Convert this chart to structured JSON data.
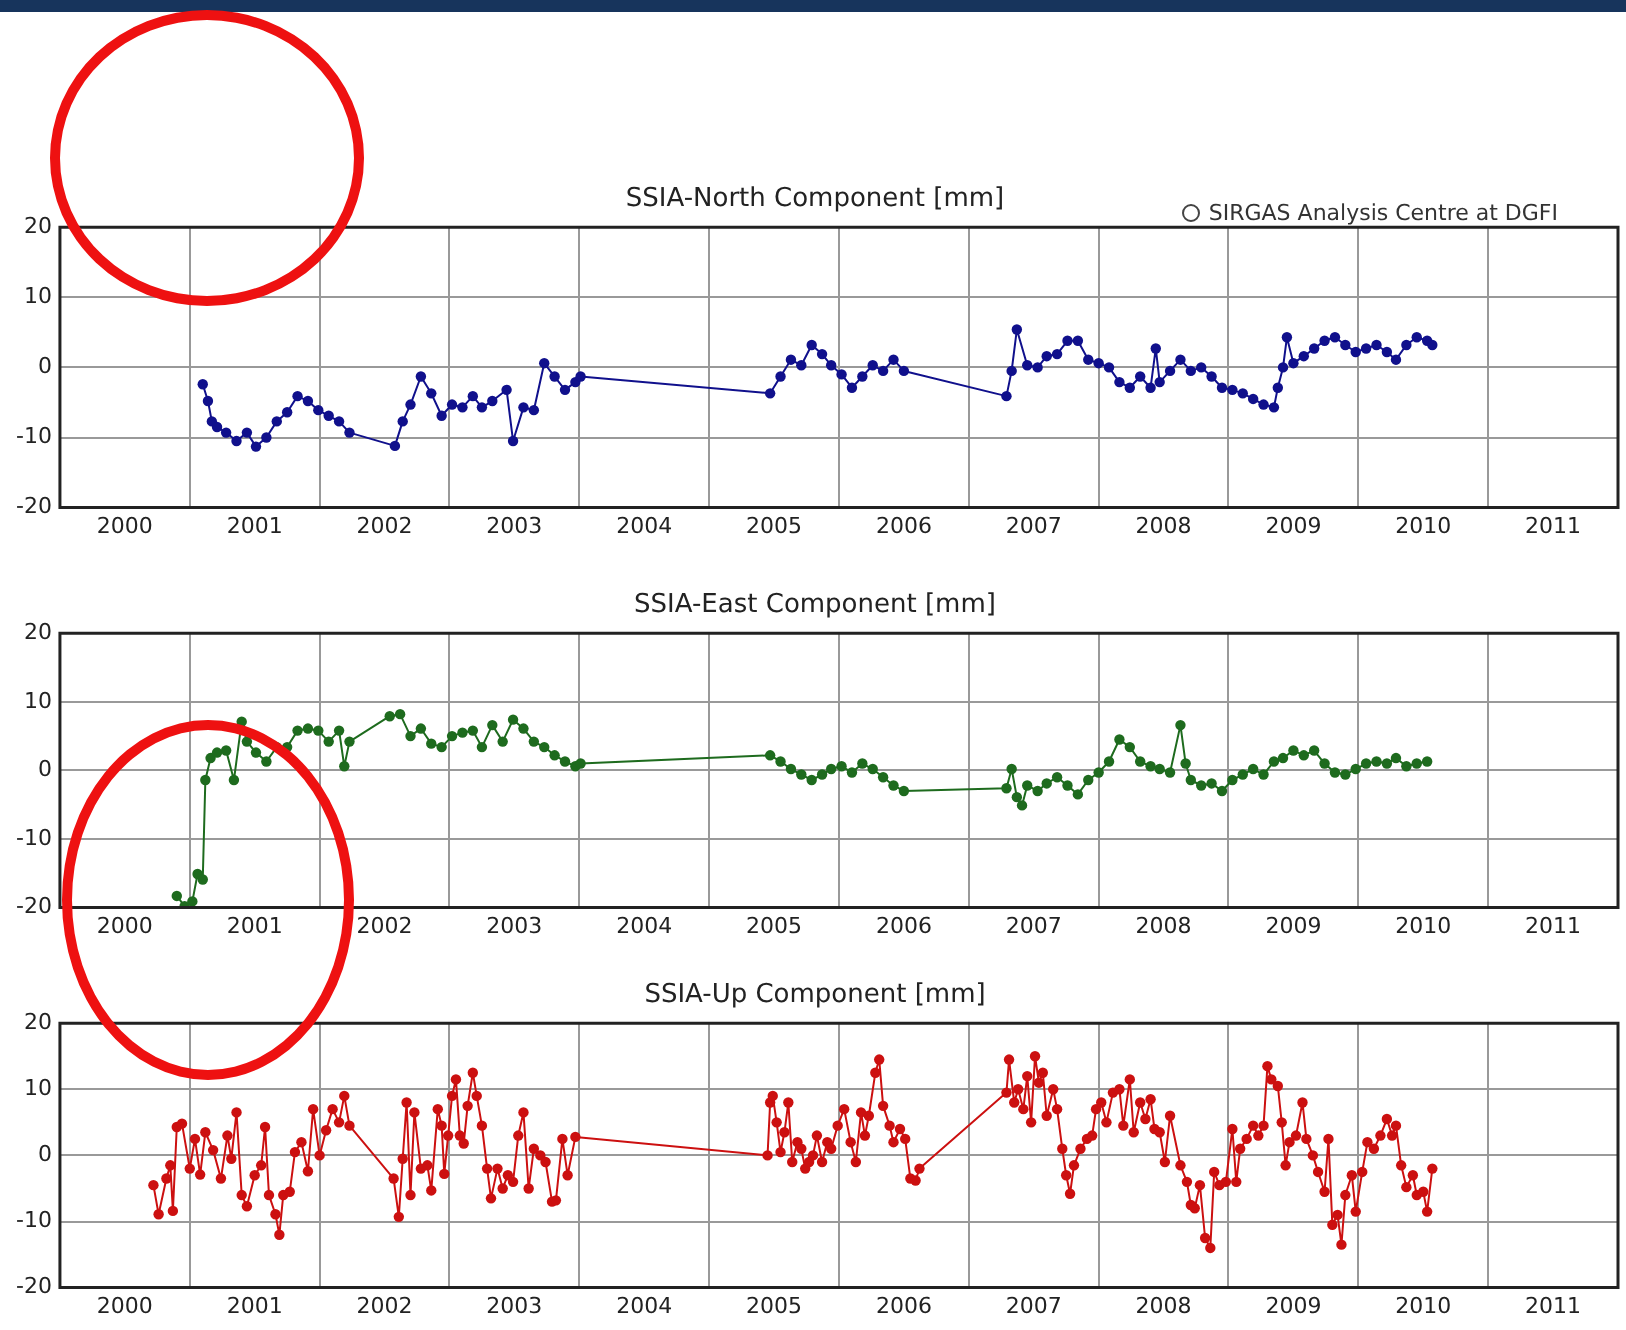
{
  "chart_data": [
    {
      "type": "line",
      "title": "SSIA-North Component [mm]",
      "annotations": [
        "SIRGAS Analysis Centre at DGFI"
      ],
      "marker": "circle",
      "grid": true,
      "xlim": [
        2000,
        2012
      ],
      "ylim": [
        -20,
        20
      ],
      "yticks": [
        -20,
        -10,
        0,
        10,
        20
      ],
      "xticks": [
        {
          "value": 2000,
          "label": null
        },
        {
          "value": 2000.5,
          "label": "2000"
        },
        {
          "value": 2001,
          "label": null
        },
        {
          "value": 2001.5,
          "label": "2001"
        },
        {
          "value": 2002,
          "label": null
        },
        {
          "value": 2002.5,
          "label": "2002"
        },
        {
          "value": 2003,
          "label": null
        },
        {
          "value": 2003.5,
          "label": "2003"
        },
        {
          "value": 2004,
          "label": null
        },
        {
          "value": 2004.5,
          "label": "2004"
        },
        {
          "value": 2005,
          "label": null
        },
        {
          "value": 2005.5,
          "label": "2005"
        },
        {
          "value": 2006,
          "label": null
        },
        {
          "value": 2006.5,
          "label": "2006"
        },
        {
          "value": 2007,
          "label": null
        },
        {
          "value": 2007.5,
          "label": "2007"
        },
        {
          "value": 2008,
          "label": null
        },
        {
          "value": 2008.5,
          "label": "2008"
        },
        {
          "value": 2009,
          "label": null
        },
        {
          "value": 2009.5,
          "label": "2009"
        },
        {
          "value": 2010,
          "label": null
        },
        {
          "value": 2010.5,
          "label": "2010"
        },
        {
          "value": 2011,
          "label": null
        },
        {
          "value": 2011.5,
          "label": "2011"
        },
        {
          "value": 2012,
          "label": null
        }
      ],
      "series": [
        {
          "color": "#10108c",
          "x": [
            2001.1,
            2001.14,
            2001.17,
            2001.21,
            2001.28,
            2001.36,
            2001.44,
            2001.51,
            2001.59,
            2001.67,
            2001.75,
            2001.83,
            2001.91,
            2001.99,
            2002.07,
            2002.15,
            2002.23,
            2002.58,
            2002.64,
            2002.7,
            2002.78,
            2002.86,
            2002.94,
            2003.02,
            2003.1,
            2003.18,
            2003.25,
            2003.33,
            2003.44,
            2003.49,
            2003.57,
            2003.65,
            2003.73,
            2003.81,
            2003.89,
            2003.97,
            2004.01,
            2005.47,
            2005.55,
            2005.63,
            2005.71,
            2005.79,
            2005.87,
            2005.94,
            2006.02,
            2006.1,
            2006.18,
            2006.26,
            2006.34,
            2006.42,
            2006.5,
            2007.29,
            2007.33,
            2007.37,
            2007.45,
            2007.53,
            2007.6,
            2007.68,
            2007.76,
            2007.84,
            2007.92,
            2008.0,
            2008.08,
            2008.16,
            2008.24,
            2008.32,
            2008.4,
            2008.44,
            2008.47,
            2008.55,
            2008.63,
            2008.71,
            2008.79,
            2008.87,
            2008.95,
            2009.03,
            2009.11,
            2009.19,
            2009.27,
            2009.35,
            2009.38,
            2009.42,
            2009.45,
            2009.5,
            2009.58,
            2009.66,
            2009.74,
            2009.82,
            2009.9,
            2009.98,
            2010.06,
            2010.14,
            2010.22,
            2010.29,
            2010.37,
            2010.45,
            2010.53,
            2010.57
          ],
          "values": [
            -2.4,
            -4.8,
            -7.7,
            -8.5,
            -9.3,
            -10.5,
            -9.3,
            -11.3,
            -10,
            -7.7,
            -6.4,
            -4.1,
            -4.8,
            -6.1,
            -6.9,
            -7.7,
            -9.3,
            -11.2,
            -7.7,
            -5.3,
            -1.3,
            -3.7,
            -6.9,
            -5.3,
            -5.7,
            -4.1,
            -5.7,
            -4.8,
            -3.2,
            -10.5,
            -5.7,
            -6.1,
            0.6,
            -1.3,
            -3.2,
            -2.1,
            -1.3,
            -3.7,
            -1.3,
            1.1,
            0.3,
            3.2,
            1.9,
            0.3,
            -1,
            -2.9,
            -1.3,
            0.3,
            -0.5,
            1.1,
            -0.5,
            -4.1,
            -0.5,
            5.4,
            0.3,
            0,
            1.6,
            1.9,
            3.8,
            3.8,
            1.1,
            0.6,
            0,
            -2.1,
            -2.9,
            -1.3,
            -2.9,
            2.7,
            -2.1,
            -0.5,
            1.1,
            -0.5,
            0,
            -1.3,
            -2.9,
            -3.2,
            -3.7,
            -4.5,
            -5.3,
            -5.7,
            -2.9,
            0,
            4.3,
            0.6,
            1.6,
            2.7,
            3.8,
            4.3,
            3.2,
            2.2,
            2.7,
            3.2,
            2.2,
            1.1,
            3.2,
            4.3,
            3.8,
            3.2
          ]
        }
      ]
    },
    {
      "type": "line",
      "title": "SSIA-East Component [mm]",
      "marker": "circle",
      "grid": true,
      "xlim": [
        2000,
        2012
      ],
      "ylim": [
        -20,
        20
      ],
      "yticks": [
        -20,
        -10,
        0,
        10,
        20
      ],
      "xticks": [
        {
          "value": 2000,
          "label": null
        },
        {
          "value": 2000.5,
          "label": "2000"
        },
        {
          "value": 2001,
          "label": null
        },
        {
          "value": 2001.5,
          "label": "2001"
        },
        {
          "value": 2002,
          "label": null
        },
        {
          "value": 2002.5,
          "label": "2002"
        },
        {
          "value": 2003,
          "label": null
        },
        {
          "value": 2003.5,
          "label": "2003"
        },
        {
          "value": 2004,
          "label": null
        },
        {
          "value": 2004.5,
          "label": "2004"
        },
        {
          "value": 2005,
          "label": null
        },
        {
          "value": 2005.5,
          "label": "2005"
        },
        {
          "value": 2006,
          "label": null
        },
        {
          "value": 2006.5,
          "label": "2006"
        },
        {
          "value": 2007,
          "label": null
        },
        {
          "value": 2007.5,
          "label": "2007"
        },
        {
          "value": 2008,
          "label": null
        },
        {
          "value": 2008.5,
          "label": "2008"
        },
        {
          "value": 2009,
          "label": null
        },
        {
          "value": 2009.5,
          "label": "2009"
        },
        {
          "value": 2010,
          "label": null
        },
        {
          "value": 2010.5,
          "label": "2010"
        },
        {
          "value": 2011,
          "label": null
        },
        {
          "value": 2011.5,
          "label": "2011"
        },
        {
          "value": 2012,
          "label": null
        }
      ],
      "series": [
        {
          "color": "#1e6b1e",
          "x": [
            2000.9,
            2000.96,
            2001.02,
            2001.06,
            2001.1,
            2001.12,
            2001.16,
            2001.21,
            2001.28,
            2001.34,
            2001.4,
            2001.44,
            2001.51,
            2001.59,
            2001.67,
            2001.75,
            2001.83,
            2001.91,
            2001.99,
            2002.07,
            2002.15,
            2002.19,
            2002.23,
            2002.54,
            2002.62,
            2002.7,
            2002.78,
            2002.86,
            2002.94,
            2003.02,
            2003.1,
            2003.18,
            2003.25,
            2003.33,
            2003.41,
            2003.49,
            2003.57,
            2003.65,
            2003.73,
            2003.81,
            2003.89,
            2003.97,
            2004.01,
            2005.47,
            2005.55,
            2005.63,
            2005.71,
            2005.79,
            2005.87,
            2005.94,
            2006.02,
            2006.1,
            2006.18,
            2006.26,
            2006.34,
            2006.42,
            2006.5,
            2007.29,
            2007.33,
            2007.37,
            2007.41,
            2007.45,
            2007.53,
            2007.6,
            2007.68,
            2007.76,
            2007.84,
            2007.92,
            2008.0,
            2008.08,
            2008.16,
            2008.24,
            2008.32,
            2008.4,
            2008.47,
            2008.55,
            2008.63,
            2008.67,
            2008.71,
            2008.79,
            2008.87,
            2008.95,
            2009.03,
            2009.11,
            2009.19,
            2009.27,
            2009.35,
            2009.42,
            2009.5,
            2009.58,
            2009.66,
            2009.74,
            2009.82,
            2009.9,
            2009.98,
            2010.06,
            2010.14,
            2010.22,
            2010.29,
            2010.37,
            2010.45,
            2010.53
          ],
          "values": [
            -18.3,
            -19.8,
            -19.1,
            -15.1,
            -15.9,
            -1.4,
            1.8,
            2.6,
            2.9,
            -1.4,
            7.1,
            4.2,
            2.6,
            1.3,
            3.4,
            3.4,
            5.8,
            6.1,
            5.8,
            4.2,
            5.8,
            0.6,
            4.2,
            7.9,
            8.2,
            5,
            6.1,
            3.9,
            3.4,
            5,
            5.5,
            5.8,
            3.4,
            6.6,
            4.2,
            7.4,
            6.1,
            4.2,
            3.4,
            2.2,
            1.3,
            0.6,
            1,
            2.2,
            1.3,
            0.2,
            -0.6,
            -1.4,
            -0.6,
            0.2,
            0.6,
            -0.3,
            1,
            0.2,
            -1,
            -2.2,
            -3,
            -2.6,
            0.2,
            -3.9,
            -5.1,
            -2.2,
            -3,
            -1.9,
            -1,
            -2.2,
            -3.5,
            -1.4,
            -0.3,
            1.3,
            4.5,
            3.4,
            1.3,
            0.6,
            0.2,
            -0.3,
            6.6,
            1,
            -1.4,
            -2.2,
            -1.9,
            -3,
            -1.4,
            -0.6,
            0.2,
            -0.6,
            1.3,
            1.8,
            2.9,
            2.2,
            2.9,
            1,
            -0.3,
            -0.6,
            0.2,
            1,
            1.3,
            1,
            1.8,
            0.6,
            1,
            1.3
          ]
        }
      ]
    },
    {
      "type": "line",
      "title": "SSIA-Up Component [mm]",
      "marker": "circle",
      "grid": true,
      "xlim": [
        2000,
        2012
      ],
      "ylim": [
        -20,
        20
      ],
      "yticks": [
        -20,
        -10,
        0,
        10,
        20
      ],
      "xticks": [
        {
          "value": 2000,
          "label": null
        },
        {
          "value": 2000.5,
          "label": "2000"
        },
        {
          "value": 2001,
          "label": null
        },
        {
          "value": 2001.5,
          "label": "2001"
        },
        {
          "value": 2002,
          "label": null
        },
        {
          "value": 2002.5,
          "label": "2002"
        },
        {
          "value": 2003,
          "label": null
        },
        {
          "value": 2003.5,
          "label": "2003"
        },
        {
          "value": 2004,
          "label": null
        },
        {
          "value": 2004.5,
          "label": "2004"
        },
        {
          "value": 2005,
          "label": null
        },
        {
          "value": 2005.5,
          "label": "2005"
        },
        {
          "value": 2006,
          "label": null
        },
        {
          "value": 2006.5,
          "label": "2006"
        },
        {
          "value": 2007,
          "label": null
        },
        {
          "value": 2007.5,
          "label": "2007"
        },
        {
          "value": 2008,
          "label": null
        },
        {
          "value": 2008.5,
          "label": "2008"
        },
        {
          "value": 2009,
          "label": null
        },
        {
          "value": 2009.5,
          "label": "2009"
        },
        {
          "value": 2010,
          "label": null
        },
        {
          "value": 2010.5,
          "label": "2010"
        },
        {
          "value": 2011,
          "label": null
        },
        {
          "value": 2011.5,
          "label": "2011"
        },
        {
          "value": 2012,
          "label": null
        }
      ],
      "series": [
        {
          "color": "#cc1010",
          "x": [
            2000.72,
            2000.76,
            2000.82,
            2000.85,
            2000.87,
            2000.9,
            2000.94,
            2001.0,
            2001.04,
            2001.08,
            2001.12,
            2001.18,
            2001.24,
            2001.29,
            2001.32,
            2001.36,
            2001.4,
            2001.44,
            2001.5,
            2001.55,
            2001.58,
            2001.61,
            2001.66,
            2001.69,
            2001.72,
            2001.77,
            2001.81,
            2001.86,
            2001.91,
            2001.95,
            2002.0,
            2002.05,
            2002.1,
            2002.15,
            2002.19,
            2002.23,
            2002.57,
            2002.61,
            2002.64,
            2002.67,
            2002.7,
            2002.73,
            2002.78,
            2002.83,
            2002.86,
            2002.91,
            2002.94,
            2002.96,
            2002.99,
            2003.02,
            2003.05,
            2003.08,
            2003.11,
            2003.14,
            2003.18,
            2003.21,
            2003.25,
            2003.29,
            2003.32,
            2003.37,
            2003.41,
            2003.45,
            2003.49,
            2003.53,
            2003.57,
            2003.61,
            2003.65,
            2003.7,
            2003.74,
            2003.79,
            2003.82,
            2003.87,
            2003.91,
            2003.97,
            2005.45,
            2005.47,
            2005.49,
            2005.52,
            2005.55,
            2005.58,
            2005.61,
            2005.64,
            2005.68,
            2005.71,
            2005.74,
            2005.77,
            2005.8,
            2005.83,
            2005.87,
            2005.91,
            2005.94,
            2005.99,
            2006.04,
            2006.09,
            2006.13,
            2006.17,
            2006.2,
            2006.23,
            2006.28,
            2006.31,
            2006.34,
            2006.39,
            2006.42,
            2006.47,
            2006.51,
            2006.55,
            2006.59,
            2006.62,
            2007.29,
            2007.31,
            2007.35,
            2007.38,
            2007.42,
            2007.45,
            2007.48,
            2007.51,
            2007.54,
            2007.57,
            2007.6,
            2007.65,
            2007.68,
            2007.72,
            2007.75,
            2007.78,
            2007.81,
            2007.86,
            2007.91,
            2007.95,
            2007.98,
            2008.02,
            2008.06,
            2008.11,
            2008.16,
            2008.19,
            2008.24,
            2008.27,
            2008.32,
            2008.36,
            2008.4,
            2008.43,
            2008.47,
            2008.51,
            2008.55,
            2008.63,
            2008.68,
            2008.71,
            2008.74,
            2008.78,
            2008.82,
            2008.86,
            2008.89,
            2008.93,
            2008.98,
            2009.03,
            2009.06,
            2009.09,
            2009.14,
            2009.19,
            2009.23,
            2009.27,
            2009.3,
            2009.33,
            2009.38,
            2009.41,
            2009.44,
            2009.47,
            2009.52,
            2009.57,
            2009.6,
            2009.65,
            2009.69,
            2009.74,
            2009.77,
            2009.8,
            2009.84,
            2009.87,
            2009.9,
            2009.95,
            2009.98,
            2010.03,
            2010.07,
            2010.12,
            2010.17,
            2010.22,
            2010.26,
            2010.29,
            2010.33,
            2010.37,
            2010.42,
            2010.45,
            2010.5,
            2010.53,
            2010.57
          ],
          "values": [
            -4.5,
            -8.9,
            -3.5,
            -1.5,
            -8.4,
            4.3,
            4.8,
            -2,
            2.5,
            -2.9,
            3.5,
            0.8,
            -3.5,
            3,
            -0.5,
            6.5,
            -6,
            -7.7,
            -3,
            -1.5,
            4.3,
            -6,
            -8.9,
            -12,
            -6,
            -5.5,
            0.5,
            2,
            -2.4,
            7,
            0,
            3.8,
            7,
            5,
            9,
            4.5,
            -3.5,
            -9.3,
            -0.5,
            8,
            -6,
            6.5,
            -2,
            -1.5,
            -5.3,
            7,
            4.5,
            -2.8,
            3,
            9,
            11.5,
            3,
            1.8,
            7.5,
            12.5,
            9,
            4.5,
            -2,
            -6.5,
            -2,
            -5,
            -3,
            -4,
            3,
            6.5,
            -5,
            1,
            0,
            -1,
            -7,
            -6.8,
            2.5,
            -3,
            2.8,
            0,
            8,
            9,
            5,
            0.5,
            3.5,
            8,
            -1,
            2,
            1,
            -2,
            -1,
            0,
            3,
            -1,
            2,
            1,
            4.5,
            7,
            2,
            -1,
            6.5,
            3,
            6,
            12.5,
            14.5,
            7.5,
            4.5,
            2,
            4,
            2.5,
            -3.5,
            -3.8,
            -2,
            9.5,
            14.5,
            8,
            10,
            7,
            12,
            5,
            15,
            11,
            12.5,
            6,
            10,
            7,
            1,
            -3,
            -5.8,
            -1.5,
            1,
            2.5,
            3,
            7,
            8,
            5,
            9.5,
            10,
            4.5,
            11.5,
            3.5,
            8,
            5.5,
            8.5,
            4,
            3.5,
            -1,
            6,
            -1.5,
            -4,
            -7.5,
            -8,
            -4.5,
            -12.5,
            -14,
            -2.5,
            -4.5,
            -4,
            4,
            -4,
            1,
            2.5,
            4.5,
            3,
            4.5,
            13.5,
            11.5,
            10.5,
            5,
            -1.5,
            2,
            3,
            8,
            2.5,
            0,
            -2.5,
            -5.5,
            2.5,
            -10.5,
            -9,
            -13.5,
            -6,
            -3,
            -8.5,
            -2.5,
            2,
            1,
            3,
            5.5,
            3,
            4.5,
            -1.5,
            -4.8,
            -3,
            -6,
            -5.5,
            -8.5,
            -2
          ]
        }
      ]
    }
  ]
}
